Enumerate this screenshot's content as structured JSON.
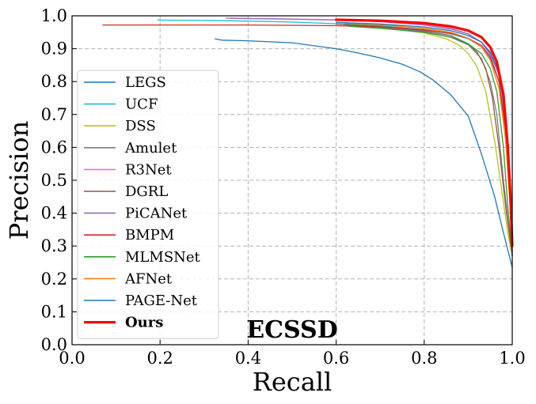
{
  "chart_data": {
    "type": "line",
    "title": "ECSSD",
    "xlabel": "Recall",
    "ylabel": "Precision",
    "xlim": [
      0.0,
      1.0
    ],
    "ylim": [
      0.0,
      1.0
    ],
    "xticks": [
      "0.0",
      "0.2",
      "0.4",
      "0.6",
      "0.8",
      "1.0"
    ],
    "yticks": [
      "0.0",
      "0.1",
      "0.2",
      "0.3",
      "0.4",
      "0.5",
      "0.6",
      "0.7",
      "0.8",
      "0.9",
      "1.0"
    ],
    "grid": true,
    "legend_position": "left",
    "series": [
      {
        "name": "LEGS",
        "color": "#1f77b4",
        "width": 1.3,
        "x": [
          0.325,
          0.34,
          0.4,
          0.5,
          0.6,
          0.65,
          0.7,
          0.75,
          0.79,
          0.82,
          0.86,
          0.9,
          0.93,
          0.96,
          0.98,
          1.0
        ],
        "y": [
          0.93,
          0.926,
          0.924,
          0.918,
          0.9,
          0.887,
          0.872,
          0.853,
          0.83,
          0.805,
          0.76,
          0.695,
          0.58,
          0.45,
          0.34,
          0.235
        ]
      },
      {
        "name": "UCF",
        "color": "#17becf",
        "width": 1.3,
        "x": [
          0.195,
          0.3,
          0.4,
          0.5,
          0.6,
          0.7,
          0.8,
          0.86,
          0.9,
          0.93,
          0.95,
          0.97,
          0.98,
          0.99,
          1.0
        ],
        "y": [
          0.987,
          0.986,
          0.984,
          0.981,
          0.976,
          0.97,
          0.958,
          0.945,
          0.93,
          0.905,
          0.87,
          0.8,
          0.72,
          0.6,
          0.3
        ]
      },
      {
        "name": "DSS",
        "color": "#bcbd22",
        "width": 1.3,
        "x": [
          0.6,
          0.7,
          0.8,
          0.85,
          0.88,
          0.9,
          0.92,
          0.94,
          0.96,
          0.975,
          0.99,
          1.0
        ],
        "y": [
          0.975,
          0.965,
          0.948,
          0.93,
          0.91,
          0.885,
          0.845,
          0.77,
          0.62,
          0.48,
          0.34,
          0.27
        ]
      },
      {
        "name": "Amulet",
        "color": "#7f7f7f",
        "width": 1.3,
        "x": [
          0.62,
          0.7,
          0.8,
          0.86,
          0.9,
          0.93,
          0.95,
          0.965,
          0.98,
          0.99,
          1.0
        ],
        "y": [
          0.972,
          0.966,
          0.952,
          0.935,
          0.912,
          0.87,
          0.8,
          0.7,
          0.5,
          0.38,
          0.27
        ]
      },
      {
        "name": "R3Net",
        "color": "#e377c2",
        "width": 1.3,
        "x": [
          0.36,
          0.5,
          0.6,
          0.7,
          0.8,
          0.86,
          0.9,
          0.93,
          0.95,
          0.97,
          0.985,
          0.995,
          1.0
        ],
        "y": [
          0.992,
          0.99,
          0.988,
          0.984,
          0.974,
          0.962,
          0.945,
          0.92,
          0.88,
          0.8,
          0.65,
          0.45,
          0.28
        ]
      },
      {
        "name": "DGRL",
        "color": "#8c564b",
        "width": 1.3,
        "x": [
          0.6,
          0.7,
          0.8,
          0.86,
          0.9,
          0.92,
          0.94,
          0.955,
          0.97,
          0.985,
          1.0
        ],
        "y": [
          0.975,
          0.968,
          0.955,
          0.94,
          0.915,
          0.89,
          0.84,
          0.75,
          0.6,
          0.42,
          0.27
        ]
      },
      {
        "name": "PiCANet",
        "color": "#9467bd",
        "width": 1.3,
        "x": [
          0.35,
          0.5,
          0.6,
          0.7,
          0.8,
          0.86,
          0.9,
          0.93,
          0.95,
          0.97,
          0.985,
          0.995,
          1.0
        ],
        "y": [
          0.993,
          0.99,
          0.987,
          0.982,
          0.972,
          0.96,
          0.945,
          0.92,
          0.885,
          0.82,
          0.7,
          0.5,
          0.28
        ]
      },
      {
        "name": "BMPM",
        "color": "#d62728",
        "width": 1.3,
        "x": [
          0.07,
          0.2,
          0.4,
          0.6,
          0.7,
          0.8,
          0.86,
          0.9,
          0.93,
          0.95,
          0.97,
          0.985,
          0.995,
          1.0
        ],
        "y": [
          0.972,
          0.972,
          0.972,
          0.97,
          0.966,
          0.958,
          0.947,
          0.932,
          0.91,
          0.875,
          0.8,
          0.65,
          0.45,
          0.27
        ]
      },
      {
        "name": "MLMSNet",
        "color": "#2ca02c",
        "width": 1.3,
        "x": [
          0.63,
          0.7,
          0.8,
          0.86,
          0.9,
          0.93,
          0.95,
          0.965,
          0.98,
          0.99,
          1.0
        ],
        "y": [
          0.968,
          0.962,
          0.95,
          0.935,
          0.915,
          0.885,
          0.84,
          0.77,
          0.6,
          0.42,
          0.27
        ]
      },
      {
        "name": "AFNet",
        "color": "#ff7f0e",
        "width": 1.3,
        "x": [
          0.62,
          0.7,
          0.8,
          0.86,
          0.9,
          0.93,
          0.95,
          0.97,
          0.985,
          0.995,
          1.0
        ],
        "y": [
          0.978,
          0.973,
          0.962,
          0.95,
          0.932,
          0.905,
          0.865,
          0.78,
          0.62,
          0.42,
          0.27
        ]
      },
      {
        "name": "PAGE-Net",
        "color": "#1f77b4",
        "width": 1.3,
        "x": [
          0.6,
          0.7,
          0.8,
          0.86,
          0.9,
          0.93,
          0.95,
          0.97,
          0.985,
          0.995,
          1.0
        ],
        "y": [
          0.98,
          0.975,
          0.966,
          0.955,
          0.94,
          0.92,
          0.89,
          0.83,
          0.7,
          0.5,
          0.28
        ]
      },
      {
        "name": "Ours",
        "color": "#ff0000",
        "width": 3.2,
        "x": [
          0.6,
          0.7,
          0.8,
          0.86,
          0.9,
          0.93,
          0.95,
          0.965,
          0.98,
          0.99,
          0.996,
          1.0
        ],
        "y": [
          0.988,
          0.985,
          0.978,
          0.968,
          0.955,
          0.935,
          0.905,
          0.86,
          0.76,
          0.6,
          0.45,
          0.3
        ]
      }
    ]
  }
}
